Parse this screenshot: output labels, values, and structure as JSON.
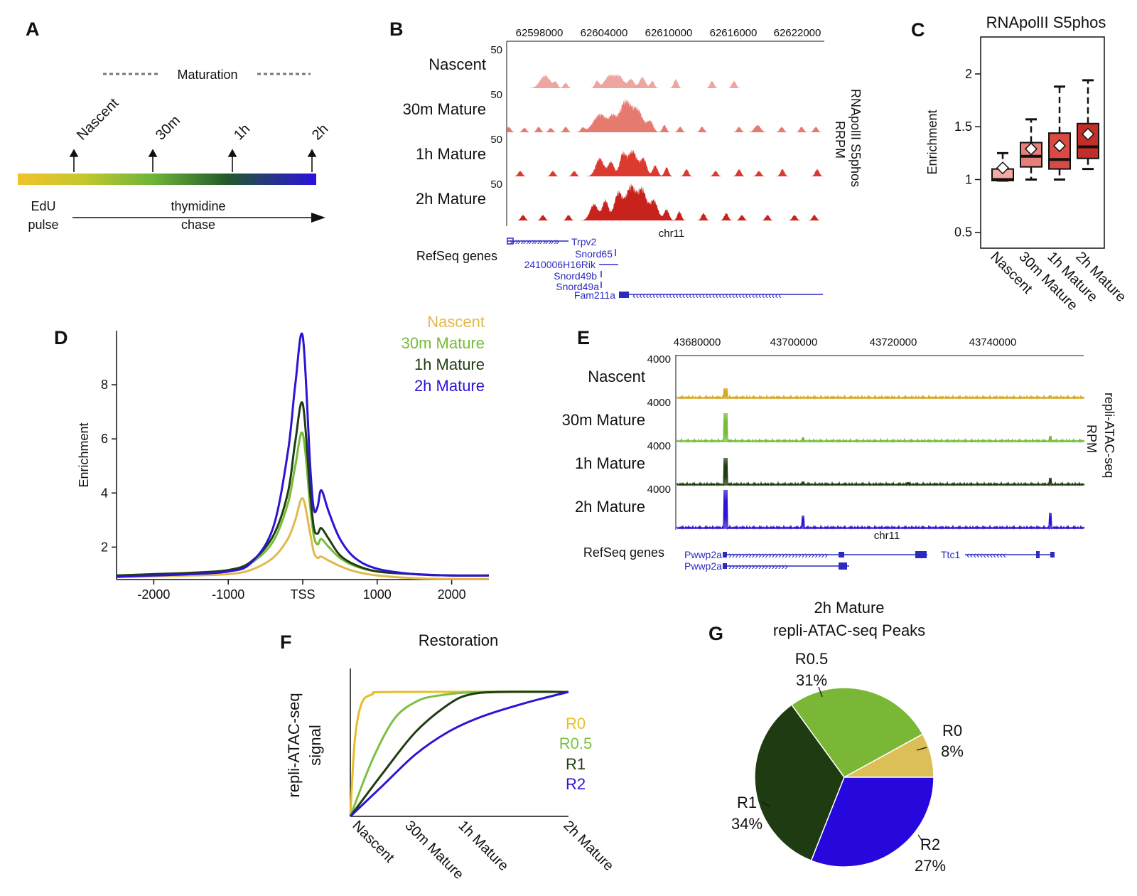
{
  "panels": {
    "A": {
      "letter": "A",
      "maturation": "Maturation",
      "timepoints": [
        "Nascent",
        "30m",
        "1h",
        "2h"
      ],
      "left_label": [
        "EdU",
        "pulse"
      ],
      "chase_label": [
        "thymidine",
        "chase"
      ]
    },
    "B": {
      "letter": "B",
      "coords": [
        "62598000",
        "62604000",
        "62610000",
        "62616000",
        "62622000"
      ],
      "tracks": [
        "Nascent",
        "30m Mature",
        "1h Mature",
        "2h Mature"
      ],
      "scale": "50",
      "chrom": "chr11",
      "side_label": [
        "RNApolII S5phos",
        "RRPM"
      ],
      "refseq": "RefSeq genes",
      "genes": [
        "Trpv2",
        "Snord65",
        "2410006H16Rik",
        "Snord49b",
        "Snord49a",
        "Fam211a"
      ],
      "track_colors": [
        "#eea59f",
        "#e57a6e",
        "#dc3a2f",
        "#c8221c"
      ]
    },
    "C": {
      "letter": "C",
      "title": "RNApolII S5phos",
      "ylabel": "Enrichment",
      "colors": [
        "#f2a8a3",
        "#e5807a",
        "#d84a43",
        "#c42e2a"
      ]
    },
    "D": {
      "letter": "D",
      "colors": [
        "#e2b94a",
        "#76bc37",
        "#1f3d10",
        "#2b14d6"
      ]
    },
    "E": {
      "letter": "E",
      "coords": [
        "43680000",
        "43700000",
        "43720000",
        "43740000"
      ],
      "tracks": [
        "Nascent",
        "30m Mature",
        "1h Mature",
        "2h Mature"
      ],
      "scale": "4000",
      "chrom": "chr11",
      "side_label": [
        "repli-ATAC-seq",
        "RPM"
      ],
      "refseq": "RefSeq genes",
      "genes": [
        "Pwwp2a",
        "Pwwp2a",
        "Ttc1"
      ],
      "track_colors": [
        "#d5a81f",
        "#76bc37",
        "#1f3d10",
        "#2b14d6"
      ]
    },
    "F": {
      "letter": "F",
      "colors": [
        "#e8bd2a",
        "#7cc043",
        "#1f3d10",
        "#2b14d6"
      ]
    },
    "G": {
      "letter": "G",
      "title": [
        "2h Mature",
        "repli-ATAC-seq Peaks"
      ],
      "colors": [
        "#dcbf56",
        "#7ab737",
        "#1e3b12",
        "#2608dc"
      ]
    }
  },
  "chart_data": [
    {
      "panel": "C",
      "type": "box",
      "title": "RNApolII S5phos",
      "ylabel": "Enrichment",
      "yticks": [
        "0.5",
        "1",
        "1.5",
        "2"
      ],
      "ylim": [
        0.35,
        2.35
      ],
      "categories": [
        "Nascent",
        "30m Mature",
        "1h Mature",
        "2h Mature"
      ],
      "boxes": [
        {
          "lo": 0.99,
          "q1": 0.99,
          "med": 1.0,
          "q3": 1.1,
          "hi": 1.25,
          "mean": 1.11
        },
        {
          "lo": 1.0,
          "q1": 1.12,
          "med": 1.22,
          "q3": 1.35,
          "hi": 1.57,
          "mean": 1.29
        },
        {
          "lo": 1.0,
          "q1": 1.1,
          "med": 1.19,
          "q3": 1.44,
          "hi": 1.88,
          "mean": 1.32
        },
        {
          "lo": 1.1,
          "q1": 1.2,
          "med": 1.31,
          "q3": 1.53,
          "hi": 1.94,
          "mean": 1.43
        }
      ]
    },
    {
      "panel": "D",
      "type": "line",
      "ylabel": "Enrichment",
      "xticks": [
        "-2000",
        "-1000",
        "TSS",
        "1000",
        "2000"
      ],
      "yticks": [
        "2",
        "4",
        "6",
        "8"
      ],
      "xlim": [
        -2500,
        2500
      ],
      "ylim": [
        0.8,
        10
      ],
      "series": [
        {
          "name": "Nascent",
          "x": [
            -2500,
            -2000,
            -1500,
            -1000,
            -700,
            -400,
            -200,
            -100,
            0,
            100,
            150,
            200,
            250,
            350,
            500,
            700,
            1000,
            1500,
            2000,
            2500
          ],
          "y": [
            0.9,
            0.92,
            0.95,
            1.0,
            1.15,
            1.6,
            2.3,
            3.0,
            3.8,
            2.5,
            1.8,
            1.6,
            1.65,
            1.5,
            1.3,
            1.1,
            0.95,
            0.85,
            0.82,
            0.82
          ]
        },
        {
          "name": "30m Mature",
          "x": [
            -2500,
            -2000,
            -1500,
            -1000,
            -700,
            -400,
            -200,
            -100,
            0,
            100,
            150,
            200,
            250,
            350,
            500,
            700,
            1000,
            1500,
            2000,
            2500
          ],
          "y": [
            0.95,
            1.0,
            1.05,
            1.15,
            1.4,
            2.2,
            3.6,
            5.0,
            6.2,
            3.5,
            2.4,
            2.1,
            2.3,
            2.0,
            1.6,
            1.3,
            1.1,
            1.0,
            0.95,
            0.95
          ]
        },
        {
          "name": "1h Mature",
          "x": [
            -2500,
            -2000,
            -1500,
            -1000,
            -700,
            -400,
            -200,
            -100,
            0,
            100,
            150,
            200,
            250,
            350,
            500,
            700,
            1000,
            1500,
            2000,
            2500
          ],
          "y": [
            0.95,
            1.0,
            1.05,
            1.15,
            1.45,
            2.4,
            4.0,
            5.9,
            7.3,
            4.0,
            2.7,
            2.5,
            2.7,
            2.3,
            1.7,
            1.35,
            1.1,
            1.0,
            0.95,
            0.95
          ]
        },
        {
          "name": "2h Mature",
          "x": [
            -2500,
            -2000,
            -1500,
            -1000,
            -700,
            -400,
            -200,
            -100,
            0,
            100,
            150,
            200,
            250,
            350,
            500,
            700,
            1000,
            1500,
            2000,
            2500
          ],
          "y": [
            0.9,
            0.95,
            1.0,
            1.1,
            1.4,
            2.7,
            5.5,
            8.0,
            9.8,
            5.0,
            3.4,
            3.5,
            4.1,
            3.3,
            2.3,
            1.6,
            1.2,
            1.0,
            0.95,
            0.95
          ]
        }
      ]
    },
    {
      "panel": "F",
      "type": "line",
      "title": "Restoration",
      "ylabel": [
        "repli-ATAC-seq",
        "signal"
      ],
      "categories": [
        "Nascent",
        "30m Mature",
        "1h Mature",
        "2h Mature"
      ],
      "series": [
        {
          "name": "R0",
          "x": [
            0,
            0.02,
            0.05,
            0.1,
            0.2,
            1.0
          ],
          "y": [
            0,
            0.6,
            0.9,
            0.98,
            1.0,
            1.0
          ]
        },
        {
          "name": "R0.5",
          "x": [
            0,
            0.1,
            0.2,
            0.3,
            0.4,
            0.6,
            1.0
          ],
          "y": [
            0,
            0.45,
            0.78,
            0.92,
            0.97,
            1.0,
            1.0
          ]
        },
        {
          "name": "R1",
          "x": [
            0,
            0.15,
            0.3,
            0.45,
            0.55,
            0.7,
            1.0
          ],
          "y": [
            0,
            0.35,
            0.68,
            0.9,
            0.98,
            1.0,
            1.0
          ]
        },
        {
          "name": "R2",
          "x": [
            0,
            0.15,
            0.3,
            0.45,
            0.6,
            0.8,
            1.0
          ],
          "y": [
            0,
            0.25,
            0.5,
            0.68,
            0.8,
            0.91,
            1.0
          ]
        }
      ]
    },
    {
      "panel": "G",
      "type": "pie",
      "title": "2h Mature repli-ATAC-seq Peaks",
      "slices": [
        {
          "label": "R0",
          "pct": "8%",
          "value": 8
        },
        {
          "label": "R2",
          "pct": "27%",
          "value": 27
        },
        {
          "label": "R1",
          "pct": "34%",
          "value": 34
        },
        {
          "label": "R0.5",
          "pct": "31%",
          "value": 31
        }
      ]
    }
  ]
}
